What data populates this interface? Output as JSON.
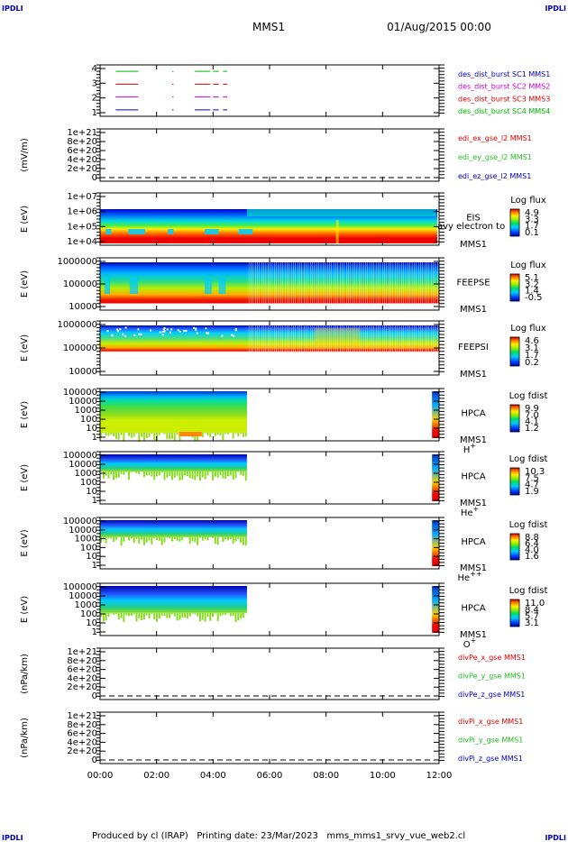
{
  "corner_labels": {
    "top_left": "IPDLI",
    "top_right": "IPDLI",
    "bottom_left": "IPDLI",
    "bottom_right": "IPDLI"
  },
  "header": {
    "mission": "MMS1",
    "date": "01/Aug/2015 00:00"
  },
  "footer": {
    "text": "Produced by cl (IRAP)   Printing date: 23/Mar/2023   mms_mms1_srvy_vue_web2.cl"
  },
  "colors": {
    "sc1": "#0000cc",
    "sc2": "#cc00cc",
    "sc3": "#dd0000",
    "sc4": "#00bb00",
    "red": "#dd0000",
    "green": "#22bb22",
    "blue": "#0000bb"
  },
  "chart_data": [
    {
      "type": "line",
      "name": "panel-burst",
      "ylim": [
        0.5,
        4.5
      ],
      "ytick_labels": [
        "4",
        "3",
        "2",
        "1"
      ],
      "legend": [
        {
          "text": "des_dist_burst SC1 MMS1",
          "color": "#0000cc"
        },
        {
          "text": "des_dist_burst SC2 MMS2",
          "color": "#cc00cc"
        },
        {
          "text": "des_dist_burst SC3 MMS3",
          "color": "#dd0000"
        },
        {
          "text": "des_dist_burst SC4 MMS4",
          "color": "#00bb00"
        }
      ],
      "series": [
        {
          "color": "#00bb00",
          "y": 4,
          "segments": [
            [
              0.55,
              1.35
            ],
            [
              2.55,
              2.6
            ],
            [
              3.35,
              3.9
            ],
            [
              4.0,
              4.2
            ],
            [
              4.35,
              4.5
            ]
          ]
        },
        {
          "color": "#dd0000",
          "y": 3,
          "segments": [
            [
              0.55,
              1.35
            ],
            [
              2.55,
              2.6
            ],
            [
              3.35,
              3.9
            ],
            [
              4.0,
              4.2
            ],
            [
              4.35,
              4.5
            ]
          ]
        },
        {
          "color": "#cc00cc",
          "y": 2,
          "segments": [
            [
              0.55,
              1.35
            ],
            [
              2.55,
              2.6
            ],
            [
              3.35,
              3.9
            ],
            [
              4.0,
              4.2
            ],
            [
              4.35,
              4.5
            ]
          ]
        },
        {
          "color": "#0000cc",
          "y": 1,
          "segments": [
            [
              0.55,
              1.35
            ],
            [
              2.55,
              2.6
            ],
            [
              3.35,
              3.9
            ],
            [
              4.0,
              4.2
            ],
            [
              4.35,
              4.5
            ]
          ]
        }
      ]
    },
    {
      "type": "line",
      "name": "panel-edi",
      "ylabel": "(mV/m)",
      "ytick_labels": [
        "1e+21",
        "8e+20",
        "6e+20",
        "4e+20",
        "2e+20",
        "0"
      ],
      "legend": [
        {
          "text": "edi_ex_gse_l2 MMS1",
          "color": "#dd0000"
        },
        {
          "text": "edi_ey_gse_l2 MMS1",
          "color": "#22bb22"
        },
        {
          "text": "edi_ez_gse_l2 MMS1",
          "color": "#0000bb"
        }
      ],
      "zero_line": true
    },
    {
      "type": "heatmap",
      "name": "panel-eis",
      "ylabel": "E (eV)",
      "ytick_labels": [
        "1e+07",
        "1e+06",
        "1e+05",
        "1e+04"
      ],
      "right_labels": [
        "EIS",
        "MMS1"
      ],
      "overlap_label": "avy electron to",
      "colorbar": {
        "title": "Log flux",
        "ticks": [
          "4.9",
          "3.3",
          "1.7",
          "0.1"
        ]
      }
    },
    {
      "type": "heatmap",
      "name": "panel-feeps-e",
      "ylabel": "E (eV)",
      "ytick_labels": [
        "1000000",
        "100000",
        "10000"
      ],
      "right_labels": [
        "FEEPSE",
        "MMS1"
      ],
      "colorbar": {
        "title": "Log flux",
        "ticks": [
          "5.1",
          "3.2",
          "1.4",
          "-0.5"
        ]
      }
    },
    {
      "type": "heatmap",
      "name": "panel-feeps-i",
      "ylabel": "E (eV)",
      "ytick_labels": [
        "1000000",
        "100000",
        "10000"
      ],
      "right_labels": [
        "FEEPSI",
        "MMS1"
      ],
      "colorbar": {
        "title": "Log flux",
        "ticks": [
          "4.6",
          "3.1",
          "1.7",
          "0.2"
        ]
      }
    },
    {
      "type": "heatmap",
      "name": "panel-hpca-h",
      "ylabel": "E (eV)",
      "ytick_labels": [
        "100000",
        "10000",
        "1000",
        "100",
        "10",
        "1"
      ],
      "right_labels": [
        "HPCA",
        "MMS1"
      ],
      "species": {
        "base": "H",
        "sup": "+"
      },
      "colorbar": {
        "title": "Log fdist",
        "ticks": [
          "9.9",
          "7.0",
          "4.1",
          "1.2"
        ]
      }
    },
    {
      "type": "heatmap",
      "name": "panel-hpca-he",
      "ylabel": "E (eV)",
      "ytick_labels": [
        "100000",
        "10000",
        "1000",
        "100",
        "10",
        "1"
      ],
      "right_labels": [
        "HPCA",
        "MMS1"
      ],
      "species": {
        "base": "He",
        "sup": "+"
      },
      "colorbar": {
        "title": "Log fdist",
        "ticks": [
          "10.3",
          "7.5",
          "4.7",
          "1.9"
        ]
      }
    },
    {
      "type": "heatmap",
      "name": "panel-hpca-hepp",
      "ylabel": "E (eV)",
      "ytick_labels": [
        "100000",
        "10000",
        "1000",
        "100",
        "10",
        "1"
      ],
      "right_labels": [
        "HPCA",
        "MMS1"
      ],
      "species": {
        "base": "He",
        "sup": "++"
      },
      "colorbar": {
        "title": "Log fdist",
        "ticks": [
          "8.8",
          "6.4",
          "4.0",
          "1.6"
        ]
      }
    },
    {
      "type": "heatmap",
      "name": "panel-hpca-o",
      "ylabel": "E (eV)",
      "ytick_labels": [
        "100000",
        "10000",
        "1000",
        "100",
        "10",
        "1"
      ],
      "right_labels": [
        "HPCA",
        "MMS1"
      ],
      "species": {
        "base": "O",
        "sup": "+"
      },
      "colorbar": {
        "title": "Log fdist",
        "ticks": [
          "11.0",
          "8.4",
          "5.7",
          "3.1"
        ]
      }
    },
    {
      "type": "line",
      "name": "panel-divpe",
      "ylabel": "(nPa/km)",
      "ytick_labels": [
        "1e+21",
        "8e+20",
        "6e+20",
        "4e+20",
        "2e+20",
        "0"
      ],
      "legend": [
        {
          "text": "divPe_x_gse MMS1",
          "color": "#dd0000"
        },
        {
          "text": "divPe_y_gse MMS1",
          "color": "#22bb22"
        },
        {
          "text": "divPe_z_gse MMS1",
          "color": "#0000bb"
        }
      ],
      "zero_line": true
    },
    {
      "type": "line",
      "name": "panel-divpi",
      "ylabel": "(nPa/km)",
      "ytick_labels": [
        "1e+21",
        "8e+20",
        "6e+20",
        "4e+20",
        "2e+20",
        "0"
      ],
      "legend": [
        {
          "text": "divPi_x_gse MMS1",
          "color": "#dd0000"
        },
        {
          "text": "divPi_y_gse MMS1",
          "color": "#22bb22"
        },
        {
          "text": "divPi_z_gse MMS1",
          "color": "#0000bb"
        }
      ],
      "zero_line": true
    }
  ],
  "xaxis": {
    "ticks": [
      "00:00",
      "02:00",
      "04:00",
      "06:00",
      "08:00",
      "10:00",
      "12:00"
    ],
    "range_hours": [
      0,
      12
    ]
  }
}
